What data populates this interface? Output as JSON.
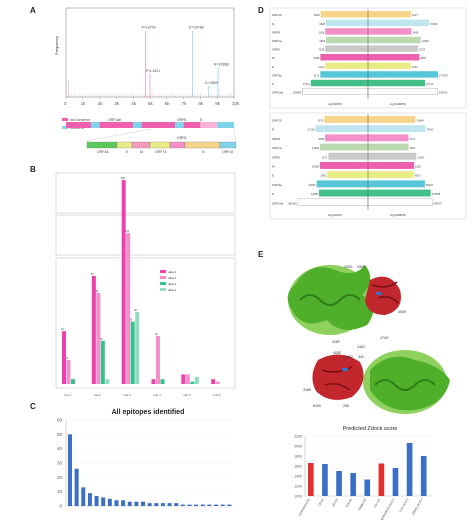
{
  "panels": {
    "A": "A",
    "B": "B",
    "C": "C",
    "D": "D",
    "E": "E"
  },
  "panel_a": {
    "ylabel": "Frequency",
    "xticks": [
      "0",
      "1k",
      "2k",
      "3k",
      "4k",
      "5k",
      "6k",
      "7k",
      "8k",
      "9k",
      "10k"
    ],
    "peaks": [
      {
        "label": "P=L9739",
        "x": 4.73,
        "h": 0.78,
        "color": "#f29bbd"
      },
      {
        "label": "D=G9786",
        "x": 7.54,
        "h": 0.78,
        "color": "#87d6ea"
      },
      {
        "label": "P=L1021",
        "x": 5.0,
        "h": 0.27,
        "color": "#f29bbd"
      },
      {
        "label": "R=K2896",
        "x": 9.05,
        "h": 0.35,
        "color": "#87d6ea"
      },
      {
        "label": "G=V859",
        "x": 8.5,
        "h": 0.13,
        "color": "#87d6ea"
      }
    ],
    "legend": [
      {
        "label": "not conserve",
        "color": "#ee5fae"
      },
      {
        "label": "conserve",
        "color": "#7fd3ea"
      }
    ],
    "orf_top": [
      "ORF1ab",
      "ORF6",
      "E"
    ],
    "orf_bottom": [
      "ORF3A",
      "E",
      "M",
      "ORF7A",
      "ORF8",
      "N",
      "ORF10"
    ]
  },
  "chart_data": [
    {
      "type": "bar",
      "panel": "B",
      "categories": [
        "Cat 1",
        "Cat 2",
        "Cat 3",
        "Cat 4",
        "Cat 5",
        "Cat 6"
      ],
      "series": [
        {
          "name": "data 1",
          "color": "#ee3fae",
          "values": [
            22,
            45,
            268,
            2,
            4,
            2
          ]
        },
        {
          "name": "data 2",
          "color": "#f48fc8",
          "values": [
            10,
            38,
            110,
            20,
            4,
            1
          ]
        },
        {
          "name": "data 3",
          "color": "#35c38a",
          "values": [
            2,
            18,
            26,
            2,
            1,
            0
          ]
        },
        {
          "name": "data 4",
          "color": "#8fdcc0",
          "values": [
            0,
            2,
            30,
            0,
            3,
            0
          ]
        }
      ],
      "legend": [
        "data 1",
        "data 2",
        "data 3",
        "data 4"
      ]
    },
    {
      "type": "bar",
      "panel": "C",
      "title": "All epitopes identified",
      "values": [
        50,
        26,
        13,
        9,
        7,
        6,
        5,
        4,
        4,
        3,
        3,
        3,
        2,
        2,
        2,
        2,
        2,
        1,
        1,
        1,
        1,
        1,
        1,
        1,
        1
      ],
      "yticks": [
        "60",
        "50",
        "40",
        "30",
        "20",
        "10",
        "0"
      ],
      "ylim": [
        0,
        60
      ],
      "color": "#3b6fc4"
    },
    {
      "type": "bar",
      "panel": "D-top",
      "orientation": "horizontal-diverging",
      "categories": [
        "ORF10",
        "N",
        "ORF8",
        "ORF7a",
        "ORF6",
        "M",
        "E",
        "ORF3a",
        "S",
        "ORF1ab"
      ],
      "left_values": [
        4818,
        1828,
        2106,
        1818,
        2108,
        5050,
        2140,
        5112,
        27711,
        128989
      ],
      "right_values": [
        2227,
        57483,
        2408,
        12560,
        8125,
        9823,
        2150,
        277003,
        27710,
        262430
      ],
      "colors": [
        "#f6d58a",
        "#bfe6ee",
        "#f48fc8",
        "#bcd9b2",
        "#c9c9c9",
        "#ee5fae",
        "#e9eb84",
        "#57c7d8",
        "#43c08a",
        "#ffffff"
      ],
      "left_label": "log(SDPR)",
      "right_label": "log(SHBPR)"
    },
    {
      "type": "bar",
      "panel": "D-bottom",
      "orientation": "horizontal-diverging",
      "categories": [
        "ORF10",
        "N",
        "ORF8",
        "ORF7a",
        "ORF6",
        "M",
        "E",
        "ORF3a",
        "S",
        "ORF1ab"
      ],
      "left_values": [
        5073,
        27102,
        4508,
        11818,
        2271,
        12080,
        2900,
        22666,
        14480,
        881381
      ],
      "right_values": [
        10664,
        74412,
        2721,
        2821,
        12821,
        8125,
        8010,
        68297,
        207608,
        285097
      ],
      "colors": [
        "#f6d58a",
        "#bfe6ee",
        "#f48fc8",
        "#bcd9b2",
        "#c9c9c9",
        "#ee5fae",
        "#e9eb84",
        "#57c7d8",
        "#43c08a",
        "#ffffff"
      ],
      "left_label": "log(SDPR)",
      "right_label": "log(SHBPR)"
    },
    {
      "type": "bar",
      "panel": "E",
      "title": "Predicted Zdock score",
      "categories": [
        "QHD43416-E1",
        "CR-E1",
        "IJD-E1",
        "TDS-E1",
        "E4991-E1",
        "CAT-E1",
        "QHD43416-SCS-2",
        "CAT-SCS-2",
        "E4991-SCS-2"
      ],
      "values": [
        1660,
        1640,
        1500,
        1460,
        1330,
        1650,
        1560,
        2060,
        1800
      ],
      "colors": [
        "#e03030",
        "#3b6fc4",
        "#3b6fc4",
        "#3b6fc4",
        "#3b6fc4",
        "#e03030",
        "#3b6fc4",
        "#3b6fc4",
        "#3b6fc4"
      ],
      "yticks": [
        "2200",
        "2000",
        "1800",
        "1600",
        "1400",
        "1200",
        "1000"
      ],
      "ylim": [
        1000,
        2200
      ]
    }
  ],
  "panel_e": {
    "labels": [
      "329G",
      "430S",
      "400E",
      "474G",
      "2462",
      "318F",
      "400E",
      "342",
      "3462",
      "318K",
      "298",
      "5190"
    ]
  }
}
